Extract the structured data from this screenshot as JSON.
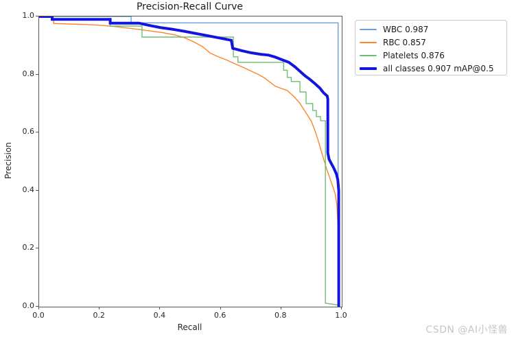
{
  "figure": {
    "title": "Precision-Recall Curve",
    "xlabel": "Recall",
    "ylabel": "Precision",
    "watermark": "CSDN @AI小怪兽"
  },
  "chart_data": {
    "type": "line",
    "title": "Precision-Recall Curve",
    "xlabel": "Recall",
    "ylabel": "Precision",
    "xlim": [
      0.0,
      1.0
    ],
    "ylim": [
      0.0,
      1.0
    ],
    "x_ticks": [
      "0.0",
      "0.2",
      "0.4",
      "0.6",
      "0.8",
      "1.0"
    ],
    "y_ticks": [
      "0.0",
      "0.2",
      "0.4",
      "0.6",
      "0.8",
      "1.0"
    ],
    "grid": false,
    "legend_position": "outside-upper-right",
    "series": [
      {
        "name": "WBC 0.987",
        "color": "#69a2d8",
        "linewidth": 1.4,
        "points": [
          [
            0,
            1
          ],
          [
            0.304,
            1
          ],
          [
            0.304,
            0.978
          ],
          [
            0.988,
            0.978
          ],
          [
            0.988,
            0.0
          ]
        ]
      },
      {
        "name": "RBC 0.857",
        "color": "#ff8429",
        "linewidth": 1.4,
        "points": [
          [
            0.048,
            0.995
          ],
          [
            0.048,
            0.976
          ],
          [
            0.1,
            0.974
          ],
          [
            0.16,
            0.972
          ],
          [
            0.21,
            0.969
          ],
          [
            0.26,
            0.964
          ],
          [
            0.31,
            0.958
          ],
          [
            0.36,
            0.951
          ],
          [
            0.41,
            0.944
          ],
          [
            0.45,
            0.936
          ],
          [
            0.48,
            0.927
          ],
          [
            0.51,
            0.913
          ],
          [
            0.54,
            0.896
          ],
          [
            0.565,
            0.874
          ],
          [
            0.59,
            0.862
          ],
          [
            0.62,
            0.85
          ],
          [
            0.645,
            0.838
          ],
          [
            0.675,
            0.824
          ],
          [
            0.7,
            0.812
          ],
          [
            0.725,
            0.8
          ],
          [
            0.745,
            0.788
          ],
          [
            0.76,
            0.776
          ],
          [
            0.78,
            0.76
          ],
          [
            0.8,
            0.752
          ],
          [
            0.82,
            0.745
          ],
          [
            0.84,
            0.726
          ],
          [
            0.86,
            0.703
          ],
          [
            0.885,
            0.663
          ],
          [
            0.9,
            0.638
          ],
          [
            0.912,
            0.605
          ],
          [
            0.92,
            0.58
          ],
          [
            0.93,
            0.545
          ],
          [
            0.94,
            0.51
          ],
          [
            0.95,
            0.475
          ],
          [
            0.96,
            0.445
          ],
          [
            0.97,
            0.415
          ],
          [
            0.978,
            0.39
          ],
          [
            0.984,
            0.35
          ],
          [
            0.988,
            0.27
          ],
          [
            0.99,
            0.15
          ],
          [
            0.991,
            0.02
          ]
        ]
      },
      {
        "name": "Platelets 0.876",
        "color": "#6fbd72",
        "linewidth": 1.4,
        "points": [
          [
            0.235,
            0.995
          ],
          [
            0.235,
            0.967
          ],
          [
            0.34,
            0.967
          ],
          [
            0.34,
            0.929
          ],
          [
            0.642,
            0.929
          ],
          [
            0.642,
            0.861
          ],
          [
            0.657,
            0.861
          ],
          [
            0.657,
            0.842
          ],
          [
            0.808,
            0.842
          ],
          [
            0.808,
            0.815
          ],
          [
            0.82,
            0.815
          ],
          [
            0.82,
            0.79
          ],
          [
            0.833,
            0.79
          ],
          [
            0.833,
            0.776
          ],
          [
            0.862,
            0.776
          ],
          [
            0.862,
            0.74
          ],
          [
            0.882,
            0.74
          ],
          [
            0.882,
            0.7
          ],
          [
            0.904,
            0.7
          ],
          [
            0.904,
            0.676
          ],
          [
            0.916,
            0.676
          ],
          [
            0.916,
            0.655
          ],
          [
            0.93,
            0.655
          ],
          [
            0.93,
            0.641
          ],
          [
            0.946,
            0.641
          ],
          [
            0.946,
            0.012
          ],
          [
            0.988,
            0.006
          ],
          [
            0.99,
            0.0
          ]
        ]
      },
      {
        "name": "all classes 0.907 mAP@0.5",
        "color": "#1414e0",
        "linewidth": 4,
        "points": [
          [
            0,
            1
          ],
          [
            0.043,
            1
          ],
          [
            0.043,
            0.99
          ],
          [
            0.235,
            0.99
          ],
          [
            0.235,
            0.977
          ],
          [
            0.33,
            0.977
          ],
          [
            0.36,
            0.97
          ],
          [
            0.4,
            0.962
          ],
          [
            0.44,
            0.956
          ],
          [
            0.48,
            0.949
          ],
          [
            0.52,
            0.941
          ],
          [
            0.56,
            0.933
          ],
          [
            0.6,
            0.925
          ],
          [
            0.635,
            0.918
          ],
          [
            0.64,
            0.89
          ],
          [
            0.67,
            0.882
          ],
          [
            0.7,
            0.875
          ],
          [
            0.73,
            0.87
          ],
          [
            0.758,
            0.867
          ],
          [
            0.78,
            0.86
          ],
          [
            0.8,
            0.852
          ],
          [
            0.825,
            0.842
          ],
          [
            0.845,
            0.827
          ],
          [
            0.863,
            0.81
          ],
          [
            0.878,
            0.796
          ],
          [
            0.895,
            0.783
          ],
          [
            0.912,
            0.768
          ],
          [
            0.928,
            0.753
          ],
          [
            0.94,
            0.737
          ],
          [
            0.952,
            0.726
          ],
          [
            0.954,
            0.715
          ],
          [
            0.954,
            0.53
          ],
          [
            0.958,
            0.508
          ],
          [
            0.965,
            0.494
          ],
          [
            0.974,
            0.477
          ],
          [
            0.982,
            0.458
          ],
          [
            0.987,
            0.437
          ],
          [
            0.99,
            0.4
          ],
          [
            0.99,
            0.0
          ]
        ]
      }
    ]
  }
}
